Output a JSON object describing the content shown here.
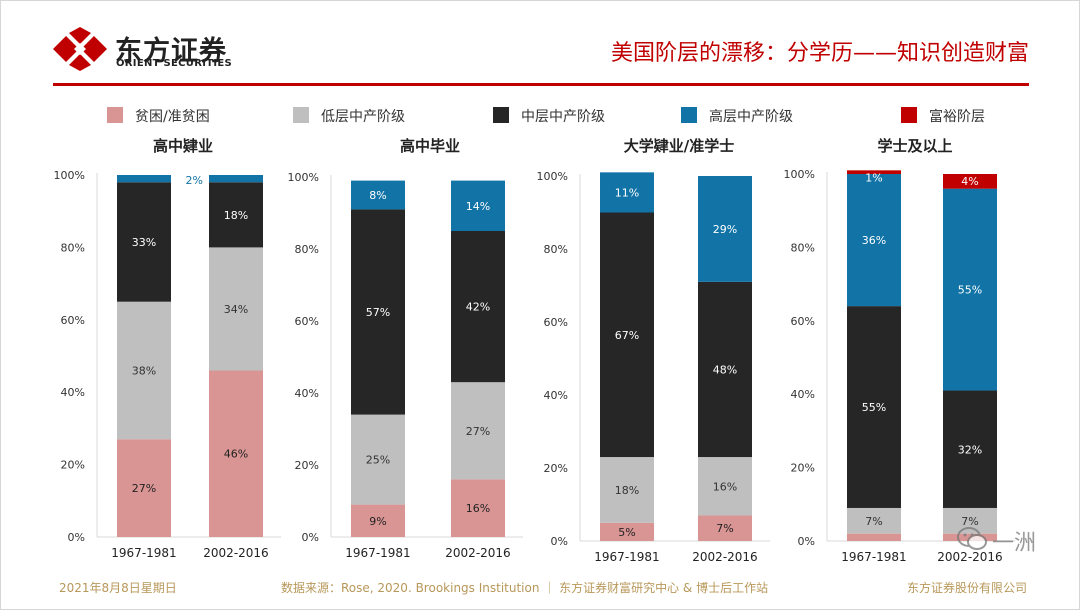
{
  "header": {
    "logo_cn": "东方证券",
    "logo_en": "ORIENT SECURITIES",
    "title": "美国阶层的漂移：分学历——知识创造财富"
  },
  "colors": {
    "brand": "#c00000",
    "poor": "#d99594",
    "lower_middle": "#bfbfbf",
    "middle": "#262626",
    "upper_middle": "#1173a6",
    "affluent": "#c00000",
    "footer": "#b8985a"
  },
  "legend": [
    {
      "label": "贫困/准贫困",
      "color": "#d99594"
    },
    {
      "label": "低层中产阶级",
      "color": "#bfbfbf"
    },
    {
      "label": "中层中产阶级",
      "color": "#262626"
    },
    {
      "label": "高层中产阶级",
      "color": "#1173a6"
    },
    {
      "label": "富裕阶层",
      "color": "#c00000"
    }
  ],
  "chart_data": [
    {
      "type": "bar",
      "stacked": true,
      "title": "高中肄业",
      "categories": [
        "1967-1981",
        "2002-2016"
      ],
      "ylim": [
        0,
        100
      ],
      "yticks": [
        "0%",
        "20%",
        "40%",
        "60%",
        "80%",
        "100%"
      ],
      "series": [
        {
          "name": "贫困/准贫困",
          "values": [
            27,
            46
          ],
          "labels": [
            "27%",
            "46%"
          ]
        },
        {
          "name": "低层中产阶级",
          "values": [
            38,
            34
          ],
          "labels": [
            "38%",
            "34%"
          ]
        },
        {
          "name": "中层中产阶级",
          "values": [
            33,
            18
          ],
          "labels": [
            "33%",
            "18%"
          ]
        },
        {
          "name": "高层中产阶级",
          "values": [
            2,
            2
          ],
          "labels": [
            "",
            "2%"
          ]
        },
        {
          "name": "富裕阶层",
          "values": [
            0,
            0
          ],
          "labels": [
            "",
            ""
          ]
        }
      ]
    },
    {
      "type": "bar",
      "stacked": true,
      "title": "高中毕业",
      "categories": [
        "1967-1981",
        "2002-2016"
      ],
      "ylim": [
        0,
        100
      ],
      "yticks": [
        "0%",
        "20%",
        "40%",
        "60%",
        "80%",
        "100%"
      ],
      "series": [
        {
          "name": "贫困/准贫困",
          "values": [
            9,
            16
          ],
          "labels": [
            "9%",
            "16%"
          ]
        },
        {
          "name": "低层中产阶级",
          "values": [
            25,
            27
          ],
          "labels": [
            "25%",
            "27%"
          ]
        },
        {
          "name": "中层中产阶级",
          "values": [
            57,
            42
          ],
          "labels": [
            "57%",
            "42%"
          ]
        },
        {
          "name": "高层中产阶级",
          "values": [
            8,
            14
          ],
          "labels": [
            "8%",
            "14%"
          ]
        },
        {
          "name": "富裕阶层",
          "values": [
            0,
            0
          ],
          "labels": [
            "",
            ""
          ]
        }
      ]
    },
    {
      "type": "bar",
      "stacked": true,
      "title": "大学肄业/准学士",
      "categories": [
        "1967-1981",
        "2002-2016"
      ],
      "ylim": [
        0,
        100
      ],
      "yticks": [
        "0%",
        "20%",
        "40%",
        "60%",
        "80%",
        "100%"
      ],
      "series": [
        {
          "name": "贫困/准贫困",
          "values": [
            5,
            7
          ],
          "labels": [
            "5%",
            "7%"
          ]
        },
        {
          "name": "低层中产阶级",
          "values": [
            18,
            16
          ],
          "labels": [
            "18%",
            "16%"
          ]
        },
        {
          "name": "中层中产阶级",
          "values": [
            67,
            48
          ],
          "labels": [
            "67%",
            "48%"
          ]
        },
        {
          "name": "高层中产阶级",
          "values": [
            11,
            29
          ],
          "labels": [
            "11%",
            "29%"
          ]
        },
        {
          "name": "富裕阶层",
          "values": [
            0,
            0
          ],
          "labels": [
            "",
            ""
          ]
        }
      ]
    },
    {
      "type": "bar",
      "stacked": true,
      "title": "学士及以上",
      "categories": [
        "1967-1981",
        "2002-2016"
      ],
      "ylim": [
        0,
        100
      ],
      "yticks": [
        "0%",
        "20%",
        "40%",
        "60%",
        "80%",
        "100%"
      ],
      "series": [
        {
          "name": "贫困/准贫困",
          "values": [
            2,
            2
          ],
          "labels": [
            "",
            ""
          ]
        },
        {
          "name": "低层中产阶级",
          "values": [
            7,
            7
          ],
          "labels": [
            "7%",
            "7%"
          ]
        },
        {
          "name": "中层中产阶级",
          "values": [
            55,
            32
          ],
          "labels": [
            "55%",
            "32%"
          ]
        },
        {
          "name": "高层中产阶级",
          "values": [
            36,
            55
          ],
          "labels": [
            "36%",
            "55%"
          ]
        },
        {
          "name": "富裕阶层",
          "values": [
            1,
            4
          ],
          "labels": [
            "1%",
            "4%"
          ]
        }
      ]
    }
  ],
  "footer": {
    "date": "2021年8月8日星期日",
    "source": "数据来源：Rose, 2020. Brookings Institution ｜ 东方证券财富研究中心 & 博士后工作站",
    "company": "东方证券股份有限公司"
  },
  "watermark": {
    "text": "一洲"
  }
}
